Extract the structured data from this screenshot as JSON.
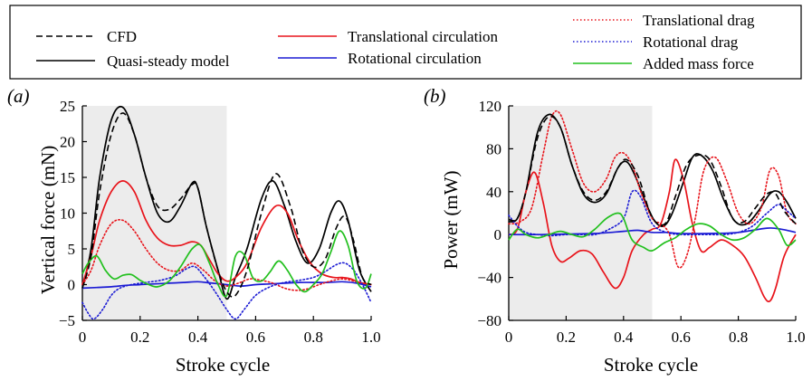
{
  "legend": {
    "items": [
      {
        "label": "CFD",
        "color": "#000000",
        "dash": "dashed"
      },
      {
        "label": "Quasi-steady model",
        "color": "#000000",
        "dash": "solid"
      },
      {
        "label": "Translational circulation",
        "color": "#e8141b",
        "dash": "solid"
      },
      {
        "label": "Rotational circulation",
        "color": "#1b1bd4",
        "dash": "solid"
      },
      {
        "label": "Translational drag",
        "color": "#e8141b",
        "dash": "dotted"
      },
      {
        "label": "Rotational drag",
        "color": "#1b1bd4",
        "dash": "dotted"
      },
      {
        "label": "Added mass force",
        "color": "#22c01e",
        "dash": "solid"
      }
    ]
  },
  "chart_data": [
    {
      "type": "line",
      "panel_label": "(a)",
      "xlabel": "Stroke cycle",
      "ylabel": "Vertical force (mN)",
      "xlim": [
        0,
        1
      ],
      "ylim": [
        -5,
        25
      ],
      "xticks": [
        "0",
        "0.2",
        "0.4",
        "0.6",
        "0.8",
        "1.0"
      ],
      "yticks": [
        "−5",
        "0",
        "5",
        "10",
        "15",
        "20",
        "25"
      ],
      "shaded_region": [
        0,
        0.5
      ],
      "grid": false,
      "series": [
        {
          "name": "CFD",
          "color": "#000000",
          "dash": "dashed",
          "x": [
            0,
            0.03,
            0.06,
            0.1,
            0.14,
            0.18,
            0.22,
            0.26,
            0.3,
            0.34,
            0.38,
            0.4,
            0.43,
            0.47,
            0.5,
            0.53,
            0.57,
            0.62,
            0.67,
            0.72,
            0.76,
            0.8,
            0.84,
            0.88,
            0.91,
            0.94,
            0.97,
            1.0
          ],
          "y": [
            -0.5,
            4,
            13,
            21,
            24,
            21,
            15,
            11,
            10.5,
            12,
            14,
            13.5,
            8,
            2,
            -1,
            -1.5,
            2,
            10,
            15.5,
            11,
            5,
            2.5,
            3.5,
            8,
            9.5,
            6,
            1,
            0
          ]
        },
        {
          "name": "Quasi-steady model",
          "color": "#000000",
          "dash": "solid",
          "x": [
            0,
            0.03,
            0.06,
            0.1,
            0.14,
            0.18,
            0.22,
            0.26,
            0.3,
            0.34,
            0.38,
            0.4,
            0.43,
            0.47,
            0.5,
            0.53,
            0.57,
            0.62,
            0.66,
            0.7,
            0.74,
            0.78,
            0.82,
            0.86,
            0.89,
            0.92,
            0.96,
            1.0
          ],
          "y": [
            -0.5,
            5,
            15,
            23,
            24.8,
            21,
            15,
            10,
            8.8,
            11,
            14.2,
            13.5,
            8,
            2,
            -2,
            1,
            5,
            12,
            14.5,
            11,
            6,
            3,
            5,
            10,
            11.7,
            9,
            2,
            -1
          ]
        },
        {
          "name": "Translational circulation",
          "color": "#e8141b",
          "dash": "solid",
          "x": [
            0,
            0.03,
            0.06,
            0.1,
            0.14,
            0.18,
            0.22,
            0.26,
            0.3,
            0.34,
            0.38,
            0.41,
            0.44,
            0.47,
            0.5,
            0.53,
            0.57,
            0.62,
            0.67,
            0.71,
            0.75,
            0.79,
            0.83,
            0.87,
            0.9,
            0.93,
            0.96,
            1.0
          ],
          "y": [
            0,
            4,
            9,
            13,
            14.5,
            13,
            9,
            6.5,
            5.5,
            5.5,
            6,
            5.5,
            3.5,
            1.5,
            0.5,
            1,
            3,
            8,
            11,
            10,
            6,
            3,
            1.5,
            1,
            1,
            0.8,
            0.3,
            0
          ]
        },
        {
          "name": "Rotational circulation",
          "color": "#1b1bd4",
          "dash": "solid",
          "x": [
            0,
            0.05,
            0.1,
            0.15,
            0.2,
            0.25,
            0.3,
            0.35,
            0.4,
            0.45,
            0.5,
            0.55,
            0.6,
            0.65,
            0.7,
            0.75,
            0.8,
            0.85,
            0.9,
            0.95,
            1.0
          ],
          "y": [
            -0.5,
            -0.4,
            -0.3,
            -0.1,
            0,
            0.1,
            0.2,
            0.3,
            0.4,
            0.2,
            0,
            -0.2,
            0,
            0.1,
            0.2,
            0.3,
            0.3,
            0.3,
            0.4,
            0.2,
            -0.3
          ]
        },
        {
          "name": "Translational drag",
          "color": "#e8141b",
          "dash": "dotted",
          "x": [
            0,
            0.03,
            0.06,
            0.1,
            0.14,
            0.18,
            0.22,
            0.26,
            0.3,
            0.34,
            0.38,
            0.42,
            0.46,
            0.5,
            0.54,
            0.58,
            0.62,
            0.66,
            0.7,
            0.74,
            0.78,
            0.82,
            0.86,
            0.9,
            0.94,
            0.97,
            1.0
          ],
          "y": [
            0,
            2,
            5.5,
            8.5,
            9,
            7.5,
            5,
            3,
            2,
            2,
            3,
            2,
            0.5,
            -0.2,
            0.2,
            0.8,
            0.6,
            0.2,
            -0.5,
            -0.8,
            -0.6,
            0,
            0.5,
            0.8,
            0.5,
            0.2,
            0
          ]
        },
        {
          "name": "Rotational drag",
          "color": "#1b1bd4",
          "dash": "dotted",
          "x": [
            0,
            0.02,
            0.04,
            0.07,
            0.1,
            0.13,
            0.17,
            0.22,
            0.27,
            0.32,
            0.36,
            0.39,
            0.42,
            0.46,
            0.5,
            0.53,
            0.56,
            0.6,
            0.65,
            0.7,
            0.75,
            0.8,
            0.84,
            0.88,
            0.91,
            0.94,
            0.97,
            1.0
          ],
          "y": [
            -2.5,
            -4,
            -4.8,
            -3.5,
            -1.5,
            -0.5,
            0,
            0.3,
            0.6,
            1.2,
            2.2,
            2.5,
            1.2,
            -1,
            -3.5,
            -4.8,
            -3.5,
            -1.5,
            -0.3,
            0.3,
            0.6,
            1,
            1.8,
            2.8,
            3,
            2,
            0,
            -2.5
          ]
        },
        {
          "name": "Added mass force",
          "color": "#22c01e",
          "dash": "solid",
          "x": [
            0,
            0.02,
            0.05,
            0.08,
            0.11,
            0.14,
            0.17,
            0.2,
            0.23,
            0.26,
            0.3,
            0.34,
            0.38,
            0.41,
            0.44,
            0.47,
            0.5,
            0.53,
            0.56,
            0.59,
            0.62,
            0.65,
            0.68,
            0.71,
            0.74,
            0.77,
            0.8,
            0.83,
            0.86,
            0.89,
            0.92,
            0.95,
            0.98,
            1.0
          ],
          "y": [
            1.5,
            3,
            4,
            2,
            0.8,
            1.3,
            1.4,
            0.6,
            0,
            -0.3,
            0.5,
            2.5,
            5,
            5.5,
            3,
            0,
            -1.5,
            4,
            4.2,
            1,
            0.5,
            1.8,
            3.3,
            2,
            0,
            -1,
            0,
            1.5,
            4.5,
            7.5,
            5.5,
            0.5,
            -0.5,
            1.5
          ]
        }
      ]
    },
    {
      "type": "line",
      "panel_label": "(b)",
      "xlabel": "Stroke cycle",
      "ylabel": "Power (mW)",
      "xlim": [
        0,
        1
      ],
      "ylim": [
        -80,
        120
      ],
      "xticks": [
        "0",
        "0.2",
        "0.4",
        "0.6",
        "0.8",
        "1.0"
      ],
      "yticks": [
        "−80",
        "−40",
        "0",
        "40",
        "80",
        "120"
      ],
      "shaded_region": [
        0,
        0.5
      ],
      "grid": false,
      "series": [
        {
          "name": "CFD",
          "color": "#000000",
          "dash": "dashed",
          "x": [
            0,
            0.03,
            0.06,
            0.1,
            0.14,
            0.18,
            0.22,
            0.26,
            0.3,
            0.34,
            0.38,
            0.41,
            0.45,
            0.49,
            0.52,
            0.55,
            0.58,
            0.62,
            0.66,
            0.7,
            0.74,
            0.78,
            0.82,
            0.86,
            0.9,
            0.93,
            0.96,
            1.0
          ],
          "y": [
            14,
            15,
            40,
            90,
            110,
            100,
            65,
            40,
            32,
            40,
            62,
            70,
            55,
            22,
            10,
            12,
            35,
            65,
            74,
            70,
            45,
            15,
            12,
            25,
            38,
            38,
            22,
            10
          ]
        },
        {
          "name": "Quasi-steady model",
          "color": "#000000",
          "dash": "solid",
          "x": [
            0,
            0.03,
            0.06,
            0.1,
            0.14,
            0.18,
            0.22,
            0.26,
            0.3,
            0.34,
            0.38,
            0.41,
            0.44,
            0.48,
            0.51,
            0.54,
            0.57,
            0.61,
            0.64,
            0.67,
            0.71,
            0.75,
            0.79,
            0.83,
            0.87,
            0.91,
            0.94,
            0.97,
            1.0
          ],
          "y": [
            12,
            15,
            40,
            95,
            112,
            100,
            65,
            38,
            30,
            38,
            62,
            68,
            55,
            28,
            12,
            8,
            20,
            50,
            72,
            74,
            60,
            32,
            12,
            10,
            22,
            38,
            40,
            30,
            15
          ]
        },
        {
          "name": "Translational circulation",
          "color": "#e8141b",
          "dash": "solid",
          "x": [
            0,
            0.03,
            0.06,
            0.09,
            0.12,
            0.15,
            0.18,
            0.21,
            0.25,
            0.29,
            0.33,
            0.37,
            0.4,
            0.43,
            0.47,
            0.5,
            0.53,
            0.56,
            0.58,
            0.61,
            0.64,
            0.67,
            0.7,
            0.74,
            0.78,
            0.82,
            0.86,
            0.89,
            0.91,
            0.93,
            0.96,
            1.0
          ],
          "y": [
            0,
            5,
            40,
            58,
            30,
            -10,
            -25,
            -22,
            -15,
            -18,
            -35,
            -50,
            -40,
            -15,
            0,
            5,
            10,
            40,
            70,
            50,
            10,
            -15,
            -12,
            -5,
            -10,
            -20,
            -40,
            -58,
            -62,
            -50,
            -20,
            0
          ]
        },
        {
          "name": "Rotational circulation",
          "color": "#1b1bd4",
          "dash": "solid",
          "x": [
            0,
            0.1,
            0.2,
            0.3,
            0.4,
            0.45,
            0.5,
            0.55,
            0.6,
            0.7,
            0.8,
            0.9,
            0.95,
            1.0
          ],
          "y": [
            0,
            0,
            0.5,
            1,
            3,
            4,
            2,
            2,
            1,
            1,
            2,
            6,
            5,
            2
          ]
        },
        {
          "name": "Translational drag",
          "color": "#e8141b",
          "dash": "dotted",
          "x": [
            0,
            0.04,
            0.08,
            0.12,
            0.15,
            0.18,
            0.22,
            0.26,
            0.3,
            0.34,
            0.37,
            0.4,
            0.43,
            0.46,
            0.5,
            0.53,
            0.56,
            0.59,
            0.62,
            0.65,
            0.68,
            0.72,
            0.76,
            0.8,
            0.84,
            0.88,
            0.91,
            0.94,
            0.97,
            1.0
          ],
          "y": [
            10,
            12,
            25,
            75,
            110,
            112,
            80,
            48,
            40,
            52,
            72,
            76,
            65,
            40,
            15,
            10,
            0,
            -30,
            -20,
            15,
            60,
            72,
            50,
            20,
            10,
            25,
            60,
            55,
            20,
            10
          ]
        },
        {
          "name": "Rotational drag",
          "color": "#1b1bd4",
          "dash": "dotted",
          "x": [
            0,
            0.03,
            0.06,
            0.1,
            0.15,
            0.2,
            0.25,
            0.3,
            0.35,
            0.4,
            0.43,
            0.46,
            0.5,
            0.55,
            0.6,
            0.65,
            0.7,
            0.75,
            0.8,
            0.85,
            0.9,
            0.94,
            0.97,
            1.0
          ],
          "y": [
            18,
            8,
            2,
            0,
            -1,
            0,
            0,
            0,
            5,
            15,
            40,
            35,
            10,
            2,
            0,
            0,
            0,
            0,
            2,
            8,
            20,
            28,
            22,
            15
          ]
        },
        {
          "name": "Added mass force",
          "color": "#22c01e",
          "dash": "solid",
          "x": [
            0,
            0.03,
            0.06,
            0.1,
            0.14,
            0.18,
            0.22,
            0.26,
            0.3,
            0.34,
            0.38,
            0.4,
            0.43,
            0.47,
            0.5,
            0.54,
            0.58,
            0.62,
            0.66,
            0.7,
            0.74,
            0.78,
            0.82,
            0.86,
            0.9,
            0.94,
            0.97,
            1.0
          ],
          "y": [
            -5,
            5,
            0,
            -3,
            0,
            3,
            0,
            -2,
            5,
            15,
            20,
            15,
            -5,
            -12,
            -15,
            -8,
            -3,
            5,
            10,
            8,
            0,
            -5,
            -3,
            5,
            15,
            5,
            -10,
            -5
          ]
        }
      ]
    }
  ]
}
